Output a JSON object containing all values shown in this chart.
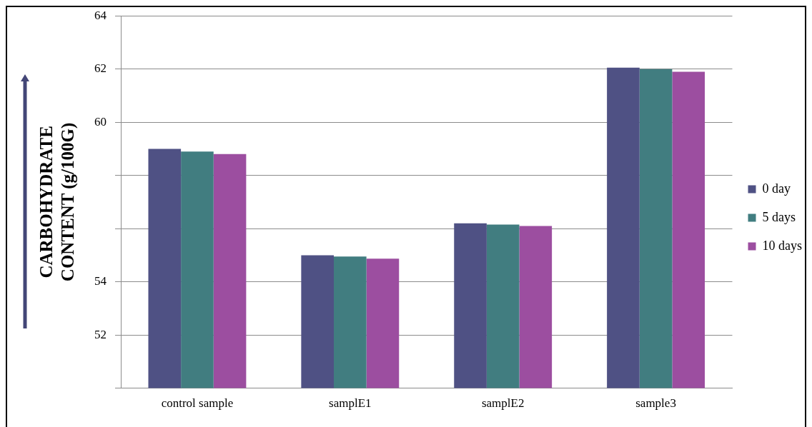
{
  "chart_data": {
    "type": "bar",
    "categories": [
      "control sample",
      "samplE1",
      "samplE2",
      "sample3"
    ],
    "series": [
      {
        "name": "0 day",
        "color": "#4f5184",
        "values": [
          59.0,
          55.0,
          56.2,
          62.05
        ]
      },
      {
        "name": "5 days",
        "color": "#417d80",
        "values": [
          58.9,
          54.95,
          56.15,
          62.0
        ]
      },
      {
        "name": "10 days",
        "color": "#9c4ea0",
        "values": [
          58.8,
          54.87,
          56.1,
          61.9
        ]
      }
    ],
    "ylabel": "CARBOHYDRATE\nCONTENT (g/100G)",
    "ylim": [
      50,
      64
    ],
    "yticks": [
      64,
      62,
      60,
      {
        "value": 58,
        "label": null
      },
      {
        "value": 56,
        "label": null
      },
      54,
      52,
      {
        "value": 50,
        "label": null
      }
    ],
    "grid": "y",
    "legend": "right"
  }
}
